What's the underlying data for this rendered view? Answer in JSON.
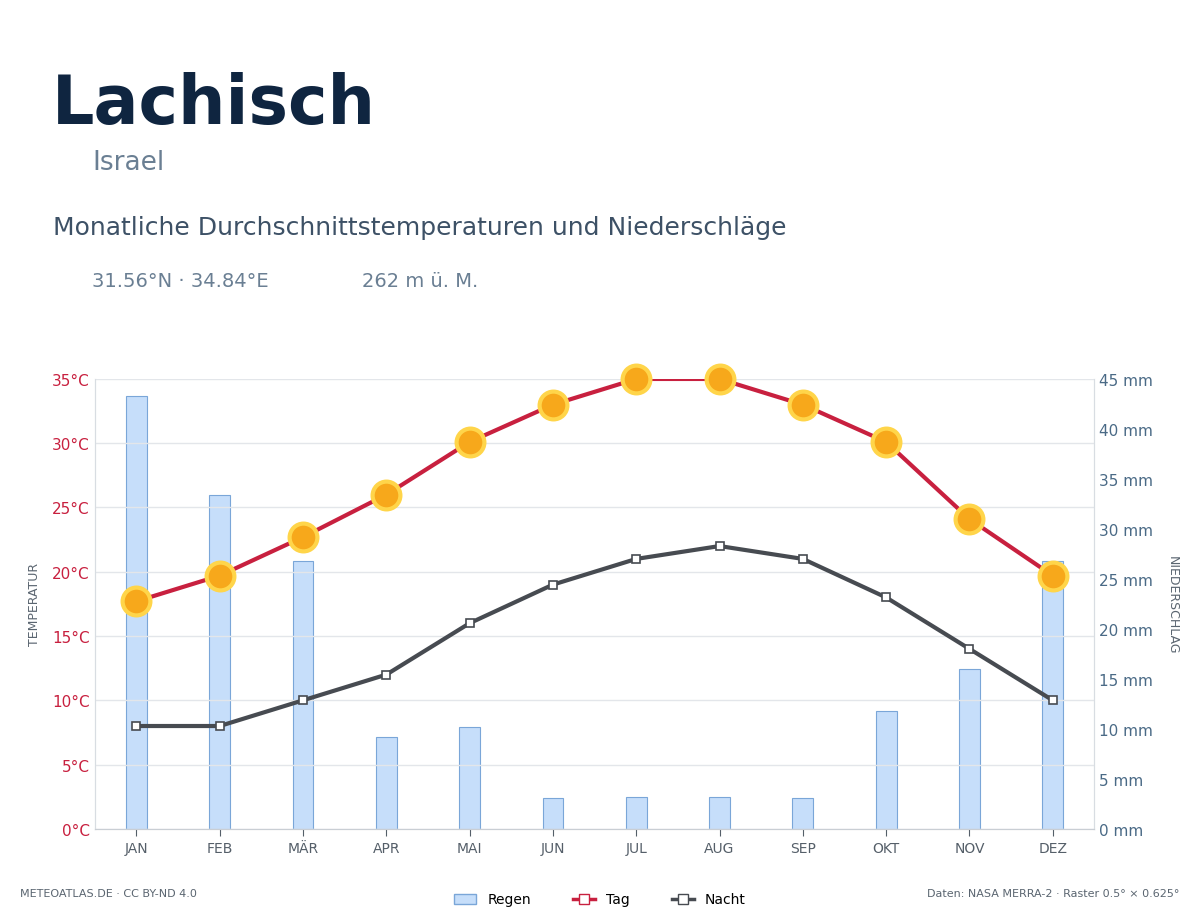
{
  "chart_data": {
    "type": "combo",
    "title": "Lachisch",
    "subtitle": "Israel",
    "heading": "Monatliche Durchschnittstemperaturen und Niederschläge",
    "coordinates": "31.56°N · 34.84°E",
    "elevation": "262 m ü. M.",
    "source": "METEOATLAS.DE · CC BY-ND 4.0",
    "data_source": "Daten: NASA MERRA-2 · Raster 0.5° × 0.625°",
    "ylabel": "TEMPERATUR",
    "y2label": "NIEDERSCHLAG",
    "categories": [
      "JAN",
      "FEB",
      "MÄR",
      "APR",
      "MAI",
      "JUN",
      "JUL",
      "AUG",
      "SEP",
      "OKT",
      "NOV",
      "DEZ"
    ],
    "ylim": [
      0,
      35
    ],
    "yticks": [
      {
        "value": 0,
        "label": "0°C"
      },
      {
        "value": 5,
        "label": "5°C"
      },
      {
        "value": 10,
        "label": "10°C"
      },
      {
        "value": 15,
        "label": "15°C"
      },
      {
        "value": 20,
        "label": "20°C"
      },
      {
        "value": 25,
        "label": "25°C"
      },
      {
        "value": 30,
        "label": "30°C"
      },
      {
        "value": 35,
        "label": "35°C"
      }
    ],
    "y2lim": [
      0,
      45
    ],
    "y2ticks": [
      {
        "value": 0,
        "label": "0 mm"
      },
      {
        "value": 5,
        "label": "5 mm"
      },
      {
        "value": 10,
        "label": "10 mm"
      },
      {
        "value": 15,
        "label": "15 mm"
      },
      {
        "value": 20,
        "label": "20 mm"
      },
      {
        "value": 25,
        "label": "25 mm"
      },
      {
        "value": 30,
        "label": "30 mm"
      },
      {
        "value": 35,
        "label": "35 mm"
      },
      {
        "value": 40,
        "label": "40 mm"
      },
      {
        "value": 45,
        "label": "45 mm"
      }
    ],
    "grid": true,
    "legend": "bottom",
    "series": [
      {
        "name": "Regen",
        "type": "bar",
        "axis": "y2",
        "color": "#c6defa",
        "values": [
          43.3,
          33.4,
          26.8,
          9.2,
          10.2,
          3.1,
          3.2,
          3.2,
          3.1,
          11.8,
          16.0,
          26.8
        ]
      },
      {
        "name": "Tag",
        "type": "line",
        "color": "#c8203f",
        "marker": "o",
        "line_style": "solid",
        "values": [
          17.7,
          19.7,
          22.7,
          26.0,
          30.1,
          33.0,
          35.0,
          35.0,
          33.0,
          30.1,
          24.1,
          19.7
        ]
      },
      {
        "name": "Nacht",
        "type": "line",
        "color": "#474b51",
        "marker": "s",
        "line_style": "solid",
        "values": [
          8,
          8,
          10,
          12,
          16,
          19,
          21,
          22,
          21,
          18,
          14,
          10
        ]
      }
    ]
  }
}
